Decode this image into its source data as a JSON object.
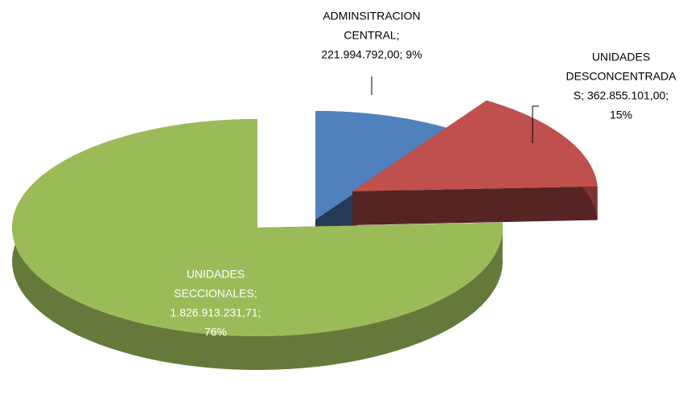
{
  "chart_data": {
    "type": "pie3d",
    "categories": [
      "ADMINSITRACION CENTRAL",
      "UNIDADES DESCONCENTRADAS",
      "UNIDADES SECCIONALES"
    ],
    "values": [
      221994792.0,
      362855101.0,
      1826913231.71
    ],
    "data_labels": [
      [
        "ADMINSITRACION",
        "CENTRAL;",
        "221.994.792,00; 9%"
      ],
      [
        "UNIDADES",
        "DESCONCENTRADA",
        "S; 362.855.101,00;",
        "15%"
      ],
      [
        "UNIDADES",
        "SECCIONALES;",
        "1.826.913.231,71;",
        "76%"
      ]
    ],
    "colors": [
      "#4f81bd",
      "#c0504d",
      "#9bbb59"
    ]
  }
}
